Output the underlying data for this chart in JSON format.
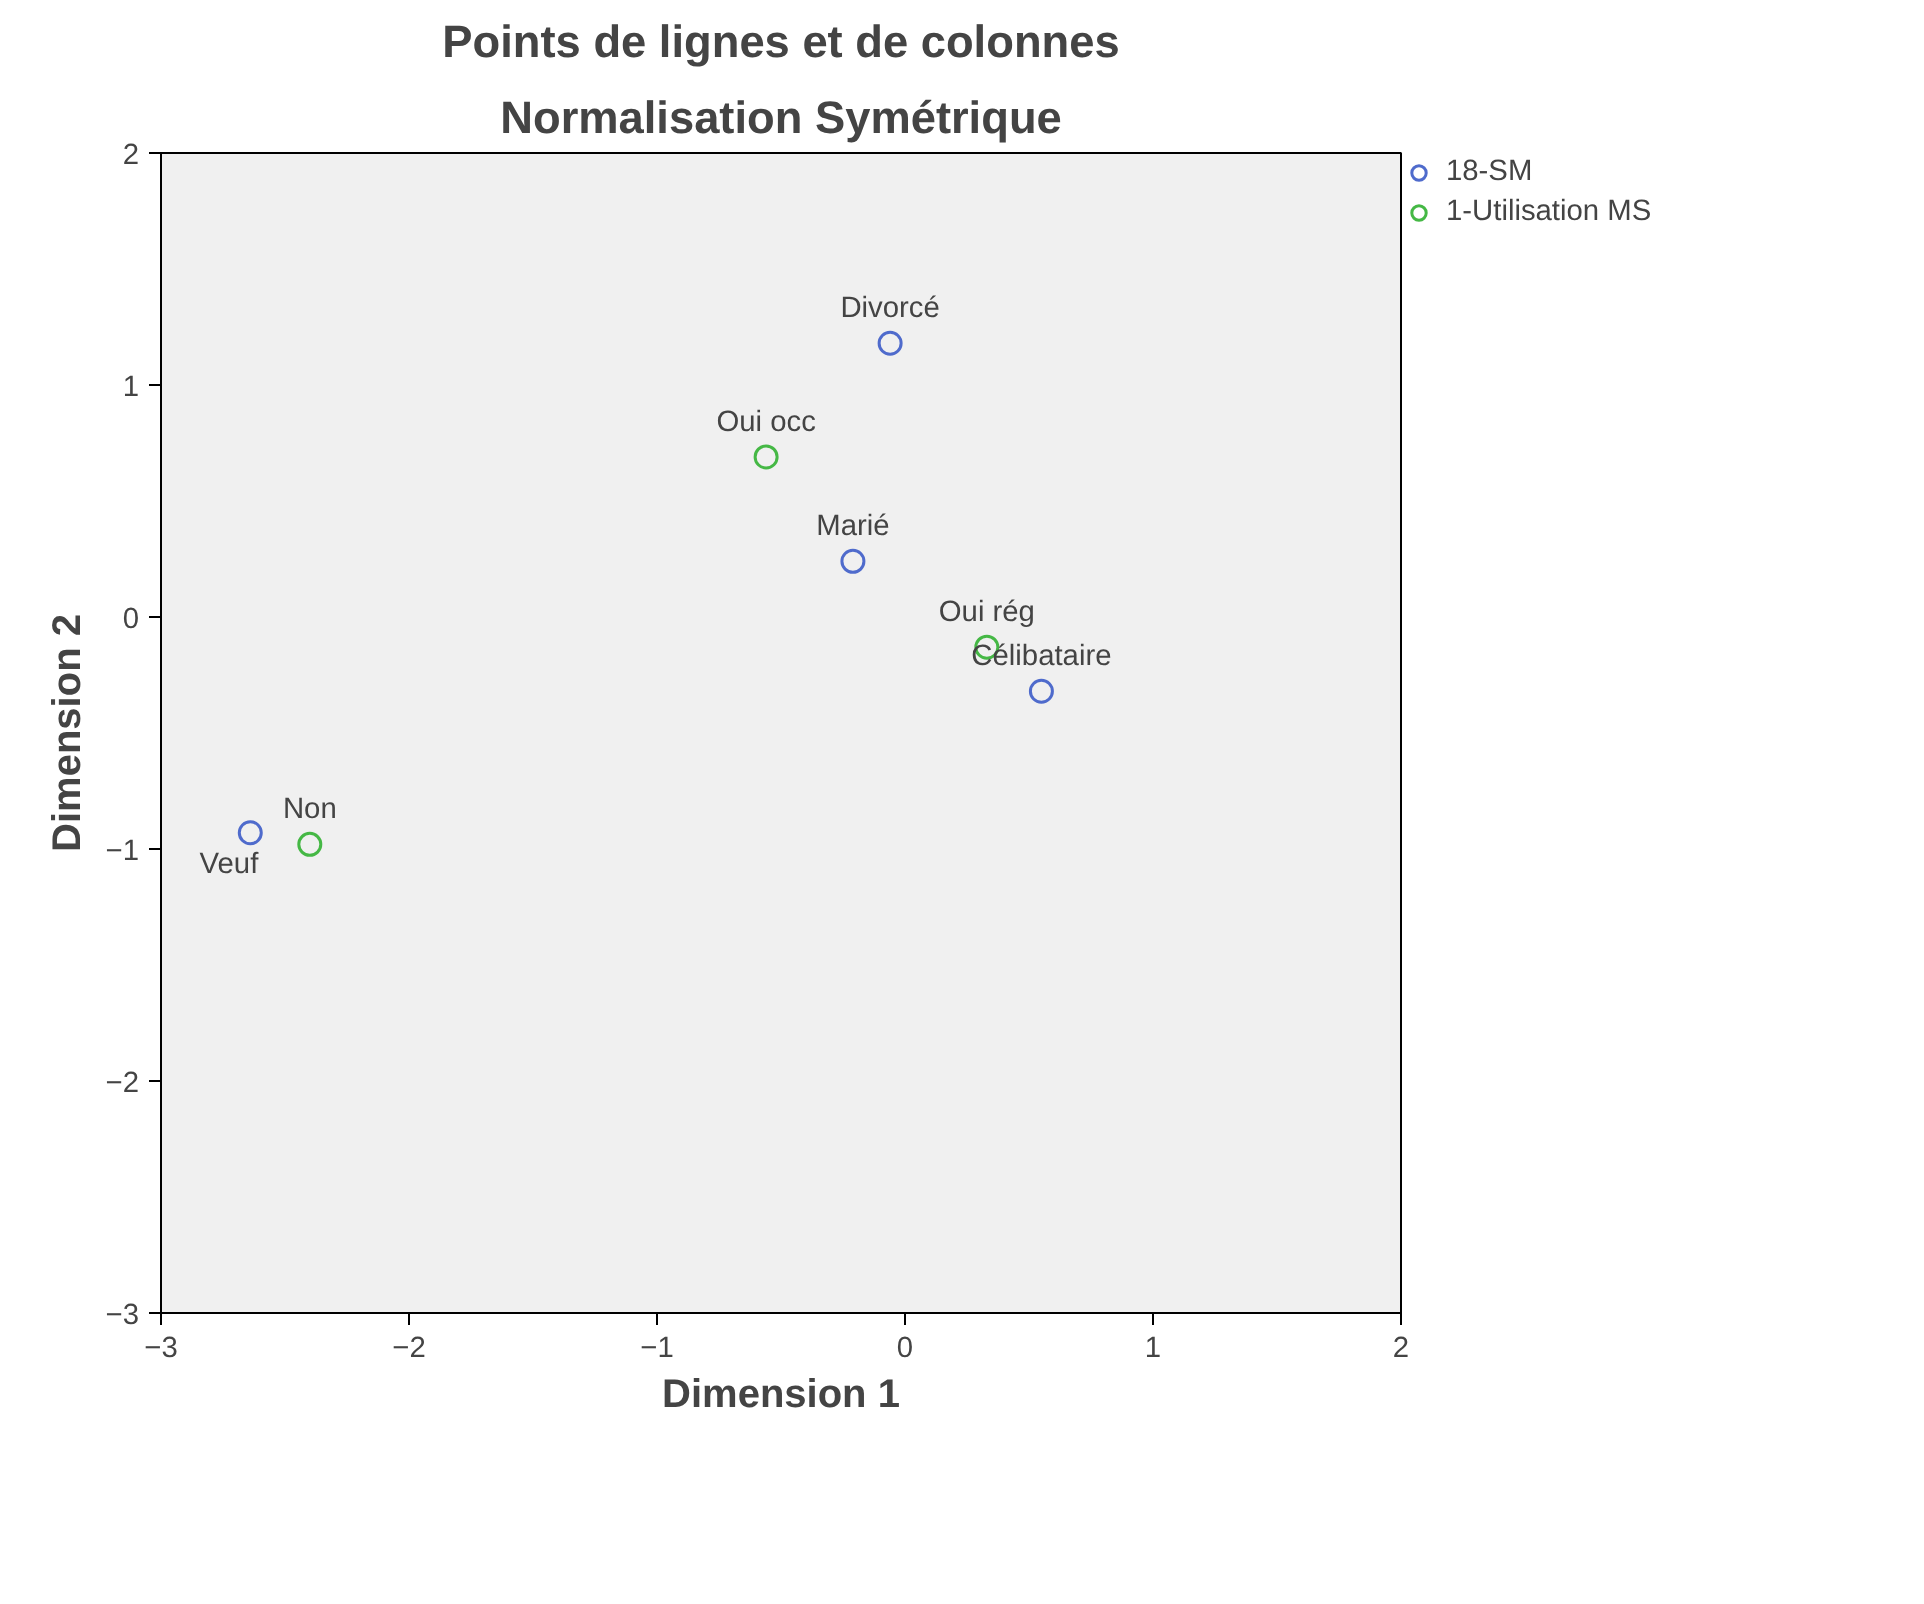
{
  "chart_data": {
    "type": "scatter",
    "title": "Points de lignes et de colonnes",
    "subtitle": "Normalisation Symétrique",
    "xlabel": "Dimension 1",
    "ylabel": "Dimension 2",
    "xlim": [
      -3,
      2
    ],
    "ylim": [
      -3,
      2
    ],
    "xticks": [
      -3,
      -2,
      -1,
      0,
      1,
      2
    ],
    "yticks": [
      -3,
      -2,
      -1,
      0,
      1,
      2
    ],
    "grid": false,
    "legend": "top right",
    "marker": "circle",
    "series": [
      {
        "name": "18-SM",
        "color": "#4f6bcc",
        "x": [
          -0.06,
          -0.21,
          0.55,
          -2.64
        ],
        "values": [
          1.18,
          0.24,
          -0.32,
          -0.93
        ]
      },
      {
        "name": "1-Utilisation MS",
        "color": "#45b845",
        "x": [
          -0.56,
          0.33,
          -2.4
        ],
        "values": [
          0.69,
          -0.13,
          -0.98
        ]
      }
    ],
    "annotations": [
      {
        "text": "Divorcé",
        "x": -0.06,
        "y": 1.18
      },
      {
        "text": "Marié",
        "x": -0.21,
        "y": 0.24
      },
      {
        "text": "Célibataire",
        "x": 0.55,
        "y": -0.32
      },
      {
        "text": "Veuf",
        "x": -2.64,
        "y": -0.93
      },
      {
        "text": "Oui occ",
        "x": -0.56,
        "y": 0.69
      },
      {
        "text": "Oui rég",
        "x": 0.33,
        "y": -0.13
      },
      {
        "text": "Non",
        "x": -2.4,
        "y": -0.98
      }
    ]
  }
}
